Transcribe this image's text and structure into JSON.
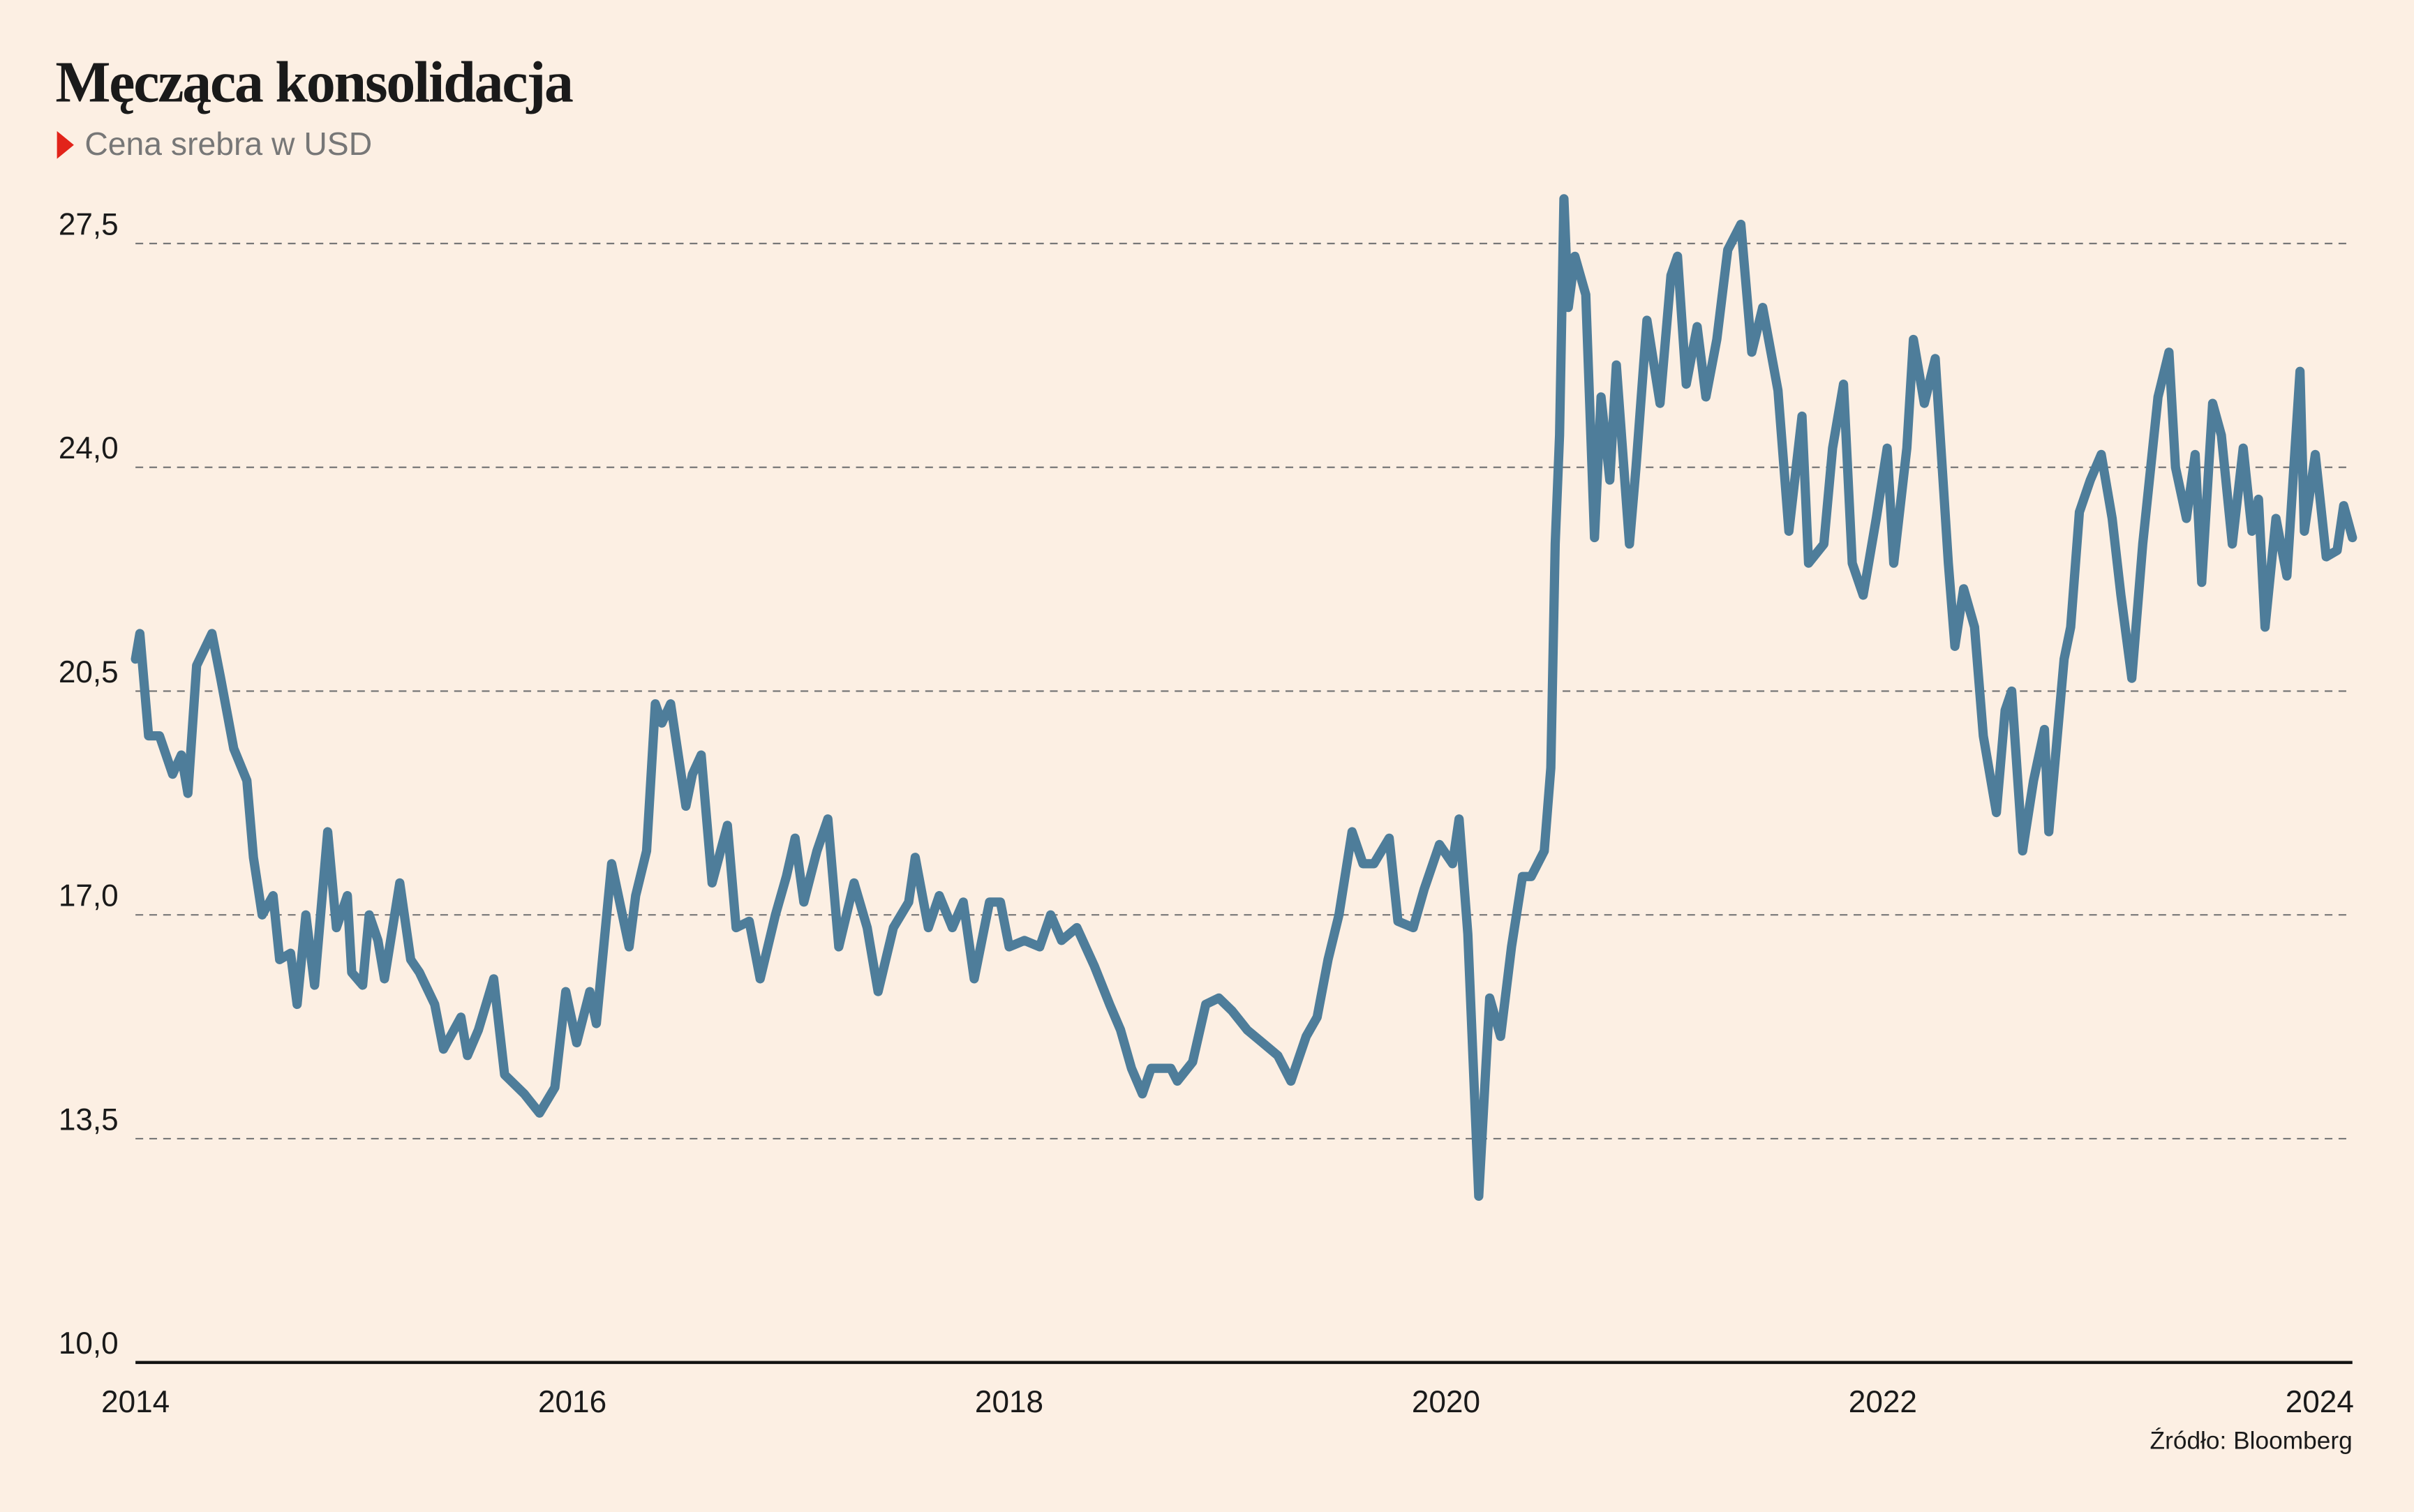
{
  "chart_data": {
    "type": "line",
    "title": "Męcząca konsolidacja",
    "subtitle": "Cena srebra w USD",
    "source": "Źródło: Bloomberg",
    "color": "#4e7d9a",
    "grid": true,
    "xlim": [
      2014,
      2024.15
    ],
    "xticks": [
      2014,
      2016,
      2018,
      2020,
      2022,
      2024
    ],
    "ylim": [
      10,
      28.5
    ],
    "yticks": [
      {
        "value": 10,
        "label": "10,0"
      },
      {
        "value": 13.5,
        "label": "13,5"
      },
      {
        "value": 17,
        "label": "17,0"
      },
      {
        "value": 20.5,
        "label": "20,5"
      },
      {
        "value": 24,
        "label": "24,0"
      },
      {
        "value": 27.5,
        "label": "27,5"
      }
    ],
    "x": [
      2014.0,
      2014.02,
      2014.06,
      2014.11,
      2014.17,
      2014.21,
      2014.24,
      2014.28,
      2014.35,
      2014.39,
      2014.45,
      2014.51,
      2014.54,
      2014.58,
      2014.63,
      2014.66,
      2014.71,
      2014.74,
      2014.78,
      2014.82,
      2014.88,
      2014.92,
      2014.97,
      2014.99,
      2015.04,
      2015.07,
      2015.11,
      2015.14,
      2015.21,
      2015.26,
      2015.3,
      2015.37,
      2015.41,
      2015.49,
      2015.52,
      2015.57,
      2015.64,
      2015.69,
      2015.78,
      2015.85,
      2015.92,
      2015.97,
      2016.02,
      2016.08,
      2016.11,
      2016.18,
      2016.26,
      2016.29,
      2016.34,
      2016.38,
      2016.41,
      2016.45,
      2016.52,
      2016.55,
      2016.59,
      2016.64,
      2016.71,
      2016.75,
      2016.81,
      2016.86,
      2016.93,
      2016.98,
      2017.02,
      2017.06,
      2017.12,
      2017.17,
      2017.22,
      2017.29,
      2017.35,
      2017.4,
      2017.47,
      2017.54,
      2017.57,
      2017.63,
      2017.68,
      2017.74,
      2017.79,
      2017.84,
      2017.91,
      2017.96,
      2018.0,
      2018.07,
      2018.14,
      2018.19,
      2018.24,
      2018.31,
      2018.39,
      2018.46,
      2018.51,
      2018.56,
      2018.61,
      2018.65,
      2018.74,
      2018.77,
      2018.84,
      2018.9,
      2018.96,
      2019.02,
      2019.09,
      2019.16,
      2019.23,
      2019.29,
      2019.36,
      2019.41,
      2019.46,
      2019.51,
      2019.57,
      2019.62,
      2019.67,
      2019.74,
      2019.78,
      2019.85,
      2019.9,
      2019.97,
      2020.03,
      2020.06,
      2020.1,
      2020.15,
      2020.2,
      2020.25,
      2020.3,
      2020.35,
      2020.39,
      2020.45,
      2020.48,
      2020.5,
      2020.52,
      2020.54,
      2020.56,
      2020.59,
      2020.64,
      2020.68,
      2020.71,
      2020.75,
      2020.78,
      2020.84,
      2020.87,
      2020.92,
      2020.98,
      2021.03,
      2021.06,
      2021.1,
      2021.15,
      2021.19,
      2021.24,
      2021.29,
      2021.35,
      2021.4,
      2021.45,
      2021.52,
      2021.57,
      2021.63,
      2021.66,
      2021.73,
      2021.77,
      2021.82,
      2021.86,
      2021.91,
      2021.97,
      2022.02,
      2022.05,
      2022.11,
      2022.14,
      2022.19,
      2022.24,
      2022.3,
      2022.33,
      2022.37,
      2022.42,
      2022.46,
      2022.52,
      2022.56,
      2022.59,
      2022.64,
      2022.69,
      2022.74,
      2022.76,
      2022.83,
      2022.86,
      2022.9,
      2022.95,
      2023.0,
      2023.05,
      2023.09,
      2023.14,
      2023.19,
      2023.26,
      2023.31,
      2023.34,
      2023.39,
      2023.43,
      2023.46,
      2023.51,
      2023.55,
      2023.6,
      2023.65,
      2023.69,
      2023.72,
      2023.75,
      2023.8,
      2023.85,
      2023.91,
      2023.93,
      2023.98,
      2024.03,
      2024.08,
      2024.11,
      2024.15
    ],
    "values": [
      21.0,
      21.4,
      19.8,
      19.8,
      19.2,
      19.5,
      18.9,
      20.9,
      21.4,
      20.7,
      19.6,
      19.1,
      17.9,
      17.0,
      17.3,
      16.3,
      16.4,
      15.6,
      17.0,
      15.9,
      18.3,
      16.8,
      17.3,
      16.1,
      15.9,
      17.0,
      16.6,
      16.0,
      17.5,
      16.3,
      16.1,
      15.6,
      14.9,
      15.4,
      14.8,
      15.2,
      16.0,
      14.5,
      14.2,
      13.9,
      14.3,
      15.8,
      15.0,
      15.8,
      15.3,
      17.8,
      16.5,
      17.3,
      18.0,
      20.3,
      20.0,
      20.3,
      18.7,
      19.2,
      19.5,
      17.5,
      18.4,
      16.8,
      16.9,
      16.0,
      17.0,
      17.6,
      18.2,
      17.2,
      18.0,
      18.5,
      16.5,
      17.5,
      16.8,
      15.8,
      16.8,
      17.2,
      17.9,
      16.8,
      17.3,
      16.8,
      17.2,
      16.0,
      17.2,
      17.2,
      16.5,
      16.6,
      16.5,
      17.0,
      16.6,
      16.8,
      16.2,
      15.6,
      15.2,
      14.6,
      14.2,
      14.6,
      14.6,
      14.4,
      14.7,
      15.6,
      15.7,
      15.5,
      15.2,
      15.0,
      14.8,
      14.4,
      15.1,
      15.4,
      16.3,
      17.0,
      18.3,
      17.8,
      17.8,
      18.2,
      16.9,
      16.8,
      17.4,
      18.1,
      17.8,
      18.5,
      16.7,
      12.6,
      15.7,
      15.1,
      16.5,
      17.6,
      17.6,
      18.0,
      19.3,
      22.8,
      24.5,
      28.2,
      26.5,
      27.3,
      26.7,
      22.9,
      25.1,
      23.8,
      25.6,
      22.8,
      24.0,
      26.3,
      25.0,
      27.0,
      27.3,
      25.3,
      26.2,
      25.1,
      26.0,
      27.4,
      27.8,
      25.8,
      26.5,
      25.2,
      23.0,
      24.8,
      22.5,
      22.8,
      24.3,
      25.3,
      22.5,
      22.0,
      23.2,
      24.3,
      22.5,
      24.3,
      26.0,
      25.0,
      25.7,
      22.5,
      21.2,
      22.1,
      21.5,
      19.8,
      18.6,
      20.2,
      20.5,
      18.0,
      19.1,
      19.9,
      18.3,
      21.0,
      21.5,
      23.3,
      23.8,
      24.2,
      23.2,
      22.0,
      20.7,
      22.8,
      25.1,
      25.8,
      24.0,
      23.2,
      24.2,
      22.2,
      25.0,
      24.5,
      22.8,
      24.3,
      23.0,
      23.5,
      21.5,
      23.2,
      22.3,
      25.5,
      23.0,
      24.2,
      22.6,
      22.7,
      23.4,
      22.9
    ]
  }
}
